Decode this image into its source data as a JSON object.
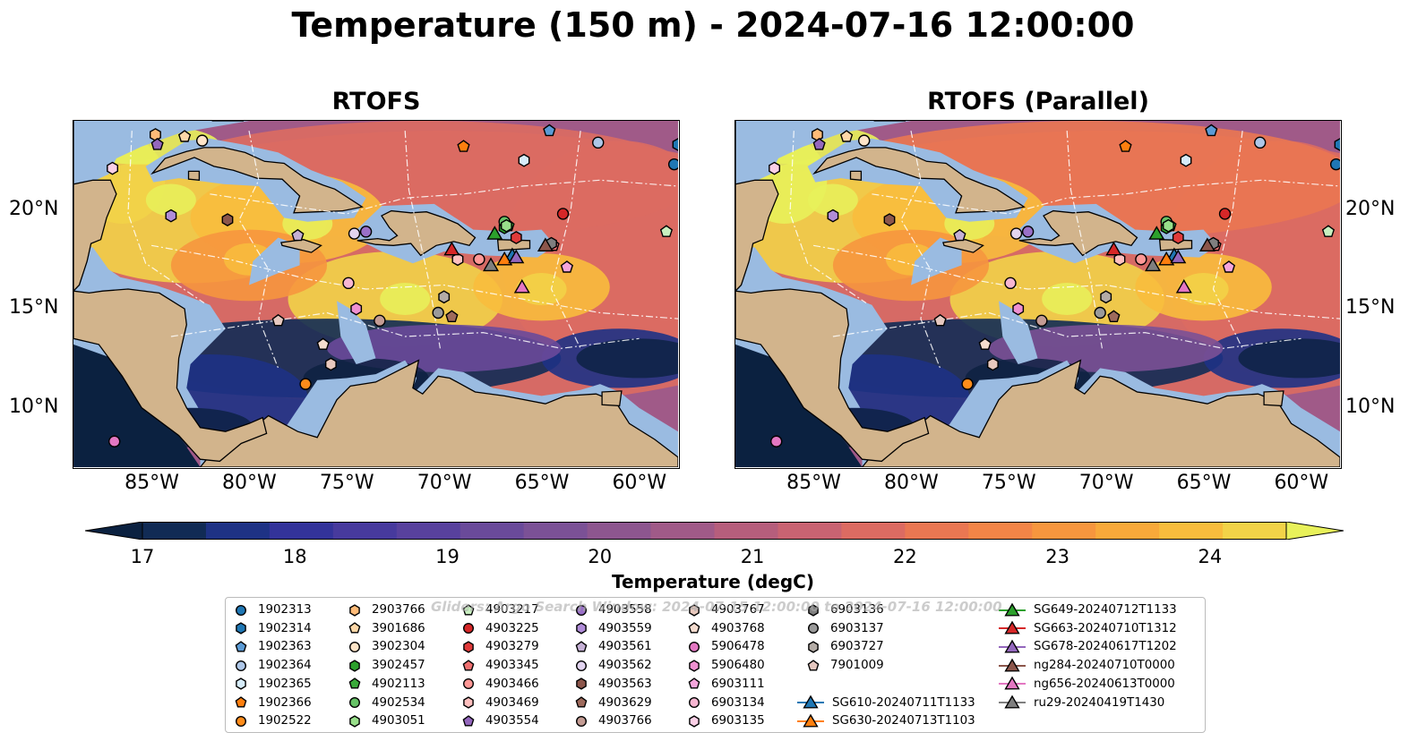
{
  "title": "Temperature (150 m) - 2024-07-16 12:00:00",
  "panels": [
    {
      "title": "RTOFS"
    },
    {
      "title": "RTOFS (Parallel)"
    }
  ],
  "map_extent": {
    "lon": [
      -89,
      -58
    ],
    "lat": [
      7,
      24.5
    ]
  },
  "lon_ticks": [
    {
      "lon": -85,
      "label": "85°W"
    },
    {
      "lon": -80,
      "label": "80°W"
    },
    {
      "lon": -75,
      "label": "75°W"
    },
    {
      "lon": -70,
      "label": "70°W"
    },
    {
      "lon": -65,
      "label": "65°W"
    },
    {
      "lon": -60,
      "label": "60°W"
    }
  ],
  "lat_ticks": [
    {
      "lat": 20,
      "label": "20°N"
    },
    {
      "lat": 15,
      "label": "15°N"
    },
    {
      "lat": 10,
      "label": "10°N"
    }
  ],
  "colorbar": {
    "label": "Temperature (degC)",
    "min": 17,
    "max": 24.5,
    "extend": "both",
    "ticks": [
      "17",
      "18",
      "19",
      "20",
      "21",
      "22",
      "23",
      "24"
    ],
    "colors": [
      "#0b2140",
      "#112b55",
      "#1e3285",
      "#33339a",
      "#473a9d",
      "#58419d",
      "#6a4a9a",
      "#7b5196",
      "#8d568f",
      "#a05a88",
      "#b65e7c",
      "#c96372",
      "#dc6b62",
      "#ea7752",
      "#f38547",
      "#f6963e",
      "#f8a93a",
      "#f8bd3d",
      "#f2d348",
      "#e8f15a"
    ]
  },
  "watermark": "Gliders: Argo Search Window: 2024-07-15 12:00:00 to 2024-07-16 12:00:00",
  "colors": {
    "land": "#d2b48c",
    "shelf": "#9abbe1",
    "deep": "#0b2140"
  },
  "chart_data": {
    "type": "heatmap",
    "title": "Temperature (150 m) - 2024-07-16 12:00:00",
    "variable": "Temperature (degC)",
    "depth_m": 150,
    "valid_time": "2024-07-16 12:00:00",
    "models": [
      "RTOFS",
      "RTOFS (Parallel)"
    ],
    "warm_cores": [
      {
        "lon": -84,
        "lat": 20.5,
        "value": 24.5
      },
      {
        "lon": -77,
        "lat": 19.3,
        "value": 24.3
      },
      {
        "lon": -72,
        "lat": 15.5,
        "value": 24.2
      },
      {
        "lon": -65,
        "lat": 16.0,
        "value": 23.8
      },
      {
        "lon": -80,
        "lat": 17.5,
        "value": 23.5
      }
    ],
    "cold_regions": [
      {
        "lon": -74,
        "lat": 11.5,
        "value": 17
      },
      {
        "lon": -83,
        "lat": 9.0,
        "value": 17
      },
      {
        "lon": -60,
        "lat": 12.5,
        "value": 17.2
      }
    ],
    "legend": [
      {
        "id": "1902313",
        "marker": "circle",
        "color": "#1f77b4",
        "lon": -58.2,
        "lat": 22.3
      },
      {
        "id": "1902314",
        "marker": "hexagon",
        "color": "#1f77b4",
        "lon": -58.0,
        "lat": 23.3
      },
      {
        "id": "1902363",
        "marker": "pentagon",
        "color": "#5b9bd5",
        "lon": -64.6,
        "lat": 24.0
      },
      {
        "id": "1902364",
        "marker": "circle",
        "color": "#aec7e8",
        "lon": -62.1,
        "lat": 23.4
      },
      {
        "id": "1902365",
        "marker": "hexagon",
        "color": "#d6ecfa",
        "lon": -65.9,
        "lat": 22.5
      },
      {
        "id": "1902366",
        "marker": "pentagon",
        "color": "#ff7f0e",
        "lon": -69.0,
        "lat": 23.2
      },
      {
        "id": "1902522",
        "marker": "circle",
        "color": "#ff8c1a",
        "lon": -77.1,
        "lat": 11.2
      },
      {
        "id": "2903766",
        "marker": "hexagon",
        "color": "#ffbb78",
        "lon": -84.8,
        "lat": 23.8
      },
      {
        "id": "3901686",
        "marker": "pentagon",
        "color": "#ffd8a8",
        "lon": -83.3,
        "lat": 23.7
      },
      {
        "id": "3902304",
        "marker": "circle",
        "color": "#ffe5c8",
        "lon": -82.4,
        "lat": 23.5
      },
      {
        "id": "3902457",
        "marker": "hexagon",
        "color": "#2ca02c",
        "lon": -66.9,
        "lat": 19.1
      },
      {
        "id": "4902113",
        "marker": "pentagon",
        "color": "#3aaa3a",
        "lon": -66.7,
        "lat": 19.2
      },
      {
        "id": "4902534",
        "marker": "circle",
        "color": "#66c266",
        "lon": -66.9,
        "lat": 19.4
      },
      {
        "id": "4903051",
        "marker": "hexagon",
        "color": "#98df8a",
        "lon": -66.8,
        "lat": 19.2
      },
      {
        "id": "4903217",
        "marker": "pentagon",
        "color": "#c9f0c0",
        "lon": -58.6,
        "lat": 18.9
      },
      {
        "id": "4903225",
        "marker": "circle",
        "color": "#d62728",
        "lon": -63.9,
        "lat": 19.8
      },
      {
        "id": "4903279",
        "marker": "hexagon",
        "color": "#e03a3a",
        "lon": -66.3,
        "lat": 18.6
      },
      {
        "id": "4903345",
        "marker": "pentagon",
        "color": "#f07070",
        "lon": -64.4,
        "lat": 18.2
      },
      {
        "id": "4903466",
        "marker": "circle",
        "color": "#ff9896",
        "lon": -68.2,
        "lat": 17.5
      },
      {
        "id": "4903469",
        "marker": "hexagon",
        "color": "#ffc0bf",
        "lon": -69.3,
        "lat": 17.5
      },
      {
        "id": "4903554",
        "marker": "pentagon",
        "color": "#9467bd",
        "lon": -84.7,
        "lat": 23.3
      },
      {
        "id": "4903558",
        "marker": "circle",
        "color": "#9a70c8",
        "lon": -74.0,
        "lat": 18.9
      },
      {
        "id": "4903559",
        "marker": "hexagon",
        "color": "#b08cd8",
        "lon": -84.0,
        "lat": 19.7
      },
      {
        "id": "4903561",
        "marker": "pentagon",
        "color": "#c5b0d5",
        "lon": -77.5,
        "lat": 18.7
      },
      {
        "id": "4903562",
        "marker": "circle",
        "color": "#e2d4f0",
        "lon": -74.6,
        "lat": 18.8
      },
      {
        "id": "4903563",
        "marker": "hexagon",
        "color": "#8c564b",
        "lon": -81.1,
        "lat": 19.5
      },
      {
        "id": "4903629",
        "marker": "pentagon",
        "color": "#9e6a5c",
        "lon": -69.6,
        "lat": 14.6
      },
      {
        "id": "4903766",
        "marker": "circle",
        "color": "#c49c94",
        "lon": -73.3,
        "lat": 14.4
      },
      {
        "id": "4903767",
        "marker": "hexagon",
        "color": "#e8c8bd",
        "lon": -75.8,
        "lat": 12.2
      },
      {
        "id": "4903768",
        "marker": "pentagon",
        "color": "#f5dccf",
        "lon": -76.2,
        "lat": 13.2
      },
      {
        "id": "5906478",
        "marker": "circle",
        "color": "#e377c2",
        "lon": -86.9,
        "lat": 8.3
      },
      {
        "id": "5906480",
        "marker": "hexagon",
        "color": "#ee90d0",
        "lon": -74.5,
        "lat": 15.0
      },
      {
        "id": "6903111",
        "marker": "pentagon",
        "color": "#f5a5dc",
        "lon": -63.7,
        "lat": 17.1
      },
      {
        "id": "6903134",
        "marker": "circle",
        "color": "#f7b6d2",
        "lon": -74.9,
        "lat": 16.3
      },
      {
        "id": "6903135",
        "marker": "hexagon",
        "color": "#fbd0e6",
        "lon": -87.0,
        "lat": 22.1
      },
      {
        "id": "6903136",
        "marker": "hexagon",
        "color": "#7f7f7f",
        "lon": -64.5,
        "lat": 18.3
      },
      {
        "id": "6903137",
        "marker": "circle",
        "color": "#9a9a9a",
        "lon": -70.3,
        "lat": 14.8
      },
      {
        "id": "6903727",
        "marker": "hexagon",
        "color": "#b4aca6",
        "lon": -70.0,
        "lat": 15.6
      },
      {
        "id": "7901009",
        "marker": "pentagon",
        "color": "#e6c8c0",
        "lon": -78.5,
        "lat": 14.4
      }
    ],
    "gliders": [
      {
        "id": "SG610-20240711T1133",
        "color": "#1f77b4",
        "lon": -66.5,
        "lat": 17.7
      },
      {
        "id": "SG630-20240713T1103",
        "color": "#ff7f0e",
        "lon": -66.9,
        "lat": 17.5
      },
      {
        "id": "SG649-20240712T1133",
        "color": "#2ca02c",
        "lon": -67.4,
        "lat": 18.8
      },
      {
        "id": "SG663-20240710T1312",
        "color": "#d62728",
        "lon": -69.6,
        "lat": 18.0
      },
      {
        "id": "SG678-20240617T1202",
        "color": "#9467bd",
        "lon": -66.3,
        "lat": 17.6
      },
      {
        "id": "ng284-20240710T0000",
        "color": "#8c564b",
        "lon": -64.8,
        "lat": 18.2
      },
      {
        "id": "ng656-20240613T0000",
        "color": "#e377c2",
        "lon": -66.0,
        "lat": 16.1
      },
      {
        "id": "ru29-20240419T1430",
        "color": "#7f7f7f",
        "lon": -67.6,
        "lat": 17.2
      }
    ]
  }
}
